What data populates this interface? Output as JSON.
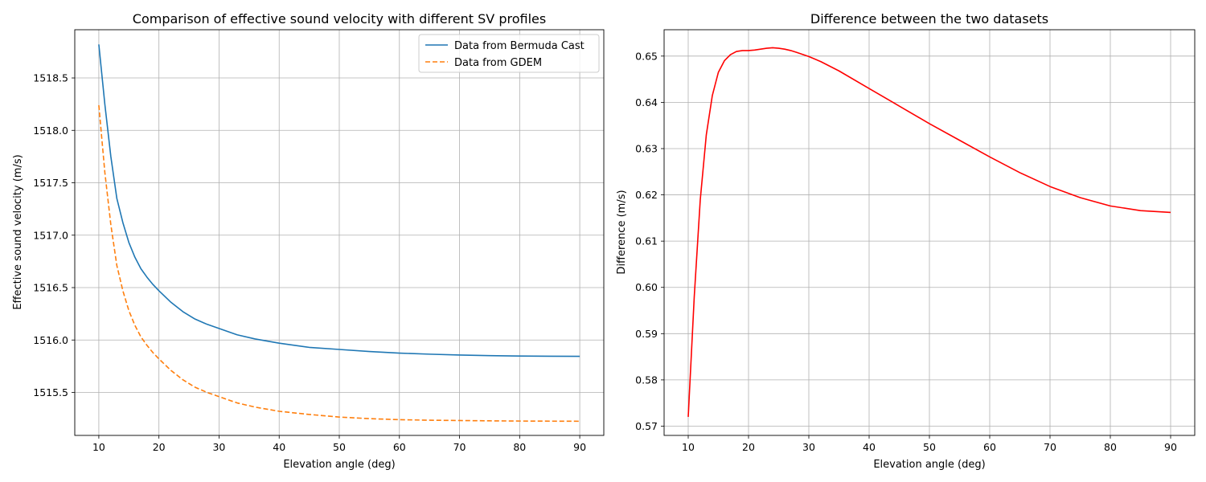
{
  "chart_data": [
    {
      "type": "line",
      "title": "Comparison of effective sound velocity with different SV profiles",
      "xlabel": "Elevation angle (deg)",
      "ylabel": "Effective sound velocity (m/s)",
      "xlim": [
        6,
        94
      ],
      "ylim": [
        1515.09,
        1518.96
      ],
      "xticks": [
        10,
        20,
        30,
        40,
        50,
        60,
        70,
        80,
        90
      ],
      "yticks": [
        1515.5,
        1516.0,
        1516.5,
        1517.0,
        1517.5,
        1518.0,
        1518.5
      ],
      "ytick_labels": [
        "1515.5",
        "1516.0",
        "1516.5",
        "1517.0",
        "1517.5",
        "1518.0",
        "1518.5"
      ],
      "grid": true,
      "legend_position": "top-right",
      "series": [
        {
          "name": "Data from Bermuda Cast",
          "color": "#1f77b4",
          "dash": "solid",
          "x": [
            10,
            11,
            12,
            13,
            14,
            15,
            16,
            17,
            18,
            19,
            20,
            22,
            24,
            26,
            28,
            30,
            33,
            36,
            40,
            45,
            50,
            55,
            60,
            65,
            70,
            75,
            80,
            85,
            90
          ],
          "y": [
            1518.82,
            1518.25,
            1517.75,
            1517.35,
            1517.12,
            1516.93,
            1516.79,
            1516.68,
            1516.6,
            1516.53,
            1516.47,
            1516.36,
            1516.27,
            1516.2,
            1516.15,
            1516.11,
            1516.05,
            1516.01,
            1515.97,
            1515.93,
            1515.91,
            1515.89,
            1515.875,
            1515.865,
            1515.857,
            1515.851,
            1515.847,
            1515.845,
            1515.844
          ]
        },
        {
          "name": "Data from GDEM",
          "color": "#ff7f0e",
          "dash": "dashed",
          "x": [
            10,
            11,
            12,
            13,
            14,
            15,
            16,
            17,
            18,
            19,
            20,
            22,
            24,
            26,
            28,
            30,
            33,
            36,
            40,
            45,
            50,
            55,
            60,
            65,
            70,
            75,
            80,
            85,
            90
          ],
          "y": [
            1518.24,
            1517.6,
            1517.1,
            1516.71,
            1516.47,
            1516.28,
            1516.14,
            1516.03,
            1515.95,
            1515.88,
            1515.82,
            1515.71,
            1515.62,
            1515.55,
            1515.5,
            1515.46,
            1515.4,
            1515.36,
            1515.32,
            1515.29,
            1515.265,
            1515.25,
            1515.24,
            1515.235,
            1515.232,
            1515.229,
            1515.227,
            1515.226,
            1515.225
          ]
        }
      ]
    },
    {
      "type": "line",
      "title": "Difference between the two datasets",
      "xlabel": "Elevation angle (deg)",
      "ylabel": "Difference (m/s)",
      "xlim": [
        6,
        94
      ],
      "ylim": [
        0.568,
        0.6557
      ],
      "xticks": [
        10,
        20,
        30,
        40,
        50,
        60,
        70,
        80,
        90
      ],
      "yticks": [
        0.57,
        0.58,
        0.59,
        0.6,
        0.61,
        0.62,
        0.63,
        0.64,
        0.65
      ],
      "ytick_labels": [
        "0.57",
        "0.58",
        "0.59",
        "0.60",
        "0.61",
        "0.62",
        "0.63",
        "0.64",
        "0.65"
      ],
      "grid": true,
      "series": [
        {
          "color": "#ff0000",
          "dash": "solid",
          "x": [
            10,
            11,
            12,
            13,
            14,
            15,
            16,
            17,
            18,
            19,
            20,
            21,
            22,
            23,
            24,
            25,
            26,
            27,
            28,
            30,
            32,
            35,
            40,
            45,
            50,
            55,
            60,
            65,
            70,
            75,
            80,
            85,
            90
          ],
          "y": [
            0.572,
            0.598,
            0.619,
            0.633,
            0.6415,
            0.6465,
            0.649,
            0.6503,
            0.651,
            0.6512,
            0.6512,
            0.6513,
            0.6515,
            0.6517,
            0.6518,
            0.6517,
            0.6515,
            0.6512,
            0.6508,
            0.6499,
            0.6488,
            0.6468,
            0.643,
            0.6392,
            0.6354,
            0.6318,
            0.6282,
            0.6248,
            0.6218,
            0.6194,
            0.6176,
            0.6166,
            0.6162
          ]
        }
      ]
    }
  ]
}
